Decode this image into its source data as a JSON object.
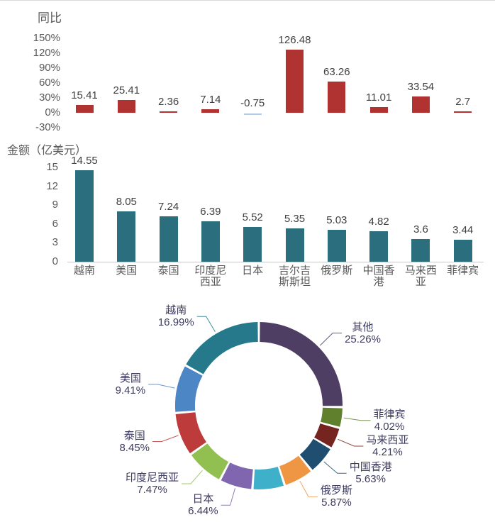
{
  "page": {
    "background": "#ffffff",
    "top_border_color": "#d9d9d9"
  },
  "chart_data": [
    {
      "type": "bar",
      "title": "同比",
      "unit": "percent",
      "categories": [
        "越南",
        "美国",
        "泰国",
        "印度尼西亚",
        "日本",
        "吉尔吉斯斯坦",
        "俄罗斯",
        "中国香港",
        "马来西亚",
        "菲律宾"
      ],
      "values": [
        15.41,
        25.41,
        2.36,
        7.14,
        -0.75,
        126.48,
        63.26,
        11.01,
        33.54,
        2.7
      ],
      "value_labels": [
        "15.41",
        "25.41",
        "2.36",
        "7.14",
        "-0.75",
        "126.48",
        "63.26",
        "11.01",
        "33.54",
        "2.7"
      ],
      "ytick_labels": [
        "150%",
        "120%",
        "90%",
        "60%",
        "30%",
        "0%",
        "-30%"
      ],
      "ylim": [
        -30,
        150
      ],
      "grid": false,
      "x_axis_labels_shown": false,
      "bar_color": "#b03331",
      "negative_bar_color": "#aecbe8"
    },
    {
      "type": "bar",
      "title": "金额（亿美元）",
      "unit": "亿美元",
      "categories": [
        "越南",
        "美国",
        "泰国",
        "印度尼西亚",
        "日本",
        "吉尔吉斯斯坦",
        "俄罗斯",
        "中国香港",
        "马来西亚",
        "菲律宾"
      ],
      "category_display": [
        "越南",
        "美国",
        "泰国",
        "印度尼\n西亚",
        "日本",
        "吉尔吉\n斯斯坦",
        "俄罗斯",
        "中国香\n港",
        "马来西\n亚",
        "菲律宾"
      ],
      "values": [
        14.55,
        8.05,
        7.24,
        6.39,
        5.52,
        5.35,
        5.03,
        4.82,
        3.6,
        3.44
      ],
      "value_labels": [
        "14.55",
        "8.05",
        "7.24",
        "6.39",
        "5.52",
        "5.35",
        "5.03",
        "4.82",
        "3.6",
        "3.44"
      ],
      "ytick_labels": [
        "15",
        "12",
        "9",
        "6",
        "3",
        "0"
      ],
      "ylim": [
        0,
        15
      ],
      "grid": false,
      "bar_color": "#2b6f7f"
    },
    {
      "type": "pie",
      "subtype": "donut",
      "start": "top",
      "direction": "clockwise",
      "segments": [
        {
          "label": "其他",
          "value": 25.26,
          "pct_text": "25.26%",
          "color": "#4e3e63"
        },
        {
          "label": "菲律宾",
          "value": 4.02,
          "pct_text": "4.02%",
          "color": "#60802e"
        },
        {
          "label": "马来西亚",
          "value": 4.21,
          "pct_text": "4.21%",
          "color": "#76241f"
        },
        {
          "label": "中国香港",
          "value": 5.63,
          "pct_text": "5.63%",
          "color": "#1f4e70"
        },
        {
          "label": "俄罗斯",
          "value": 5.87,
          "pct_text": "5.87%",
          "color": "#ee9643"
        },
        {
          "label": "",
          "value": 6.25,
          "pct_text": "",
          "color": "#3fb0c9"
        },
        {
          "label": "日本",
          "value": 6.44,
          "pct_text": "6.44%",
          "color": "#8066ae"
        },
        {
          "label": "印度尼西亚",
          "value": 7.47,
          "pct_text": "7.47%",
          "color": "#92c050"
        },
        {
          "label": "泰国",
          "value": 8.45,
          "pct_text": "8.45%",
          "color": "#be3b3c"
        },
        {
          "label": "美国",
          "value": 9.41,
          "pct_text": "9.41%",
          "color": "#4c86c4"
        },
        {
          "label": "越南",
          "value": 16.99,
          "pct_text": "16.99%",
          "color": "#26798b"
        }
      ]
    }
  ]
}
